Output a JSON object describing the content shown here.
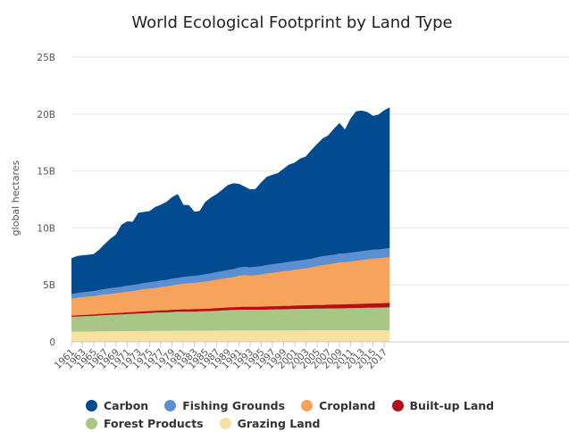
{
  "chart_data": {
    "type": "area",
    "stacked": true,
    "title": "World Ecological Footprint by Land Type",
    "ylabel": "global hectares",
    "ylim": [
      0,
      25
    ],
    "y_unit": "B",
    "yticks": [
      "0",
      "5B",
      "10B",
      "15B",
      "20B",
      "25B"
    ],
    "grid": true,
    "legend_position": "bottom",
    "x_start": 1961,
    "xtick_labels": [
      "1961",
      "1963",
      "1965",
      "1967",
      "1969",
      "1971",
      "1973",
      "1975",
      "1977",
      "1979",
      "1981",
      "1983",
      "1985",
      "1987",
      "1989",
      "1991",
      "1993",
      "1995",
      "1997",
      "1999",
      "2001",
      "2003",
      "2005",
      "2007",
      "2009",
      "2011",
      "2013",
      "2015",
      "2017"
    ],
    "series": [
      {
        "name": "Grazing Land",
        "color": "#f7e1a0",
        "values": [
          0.9,
          0.9,
          0.9,
          0.9,
          0.9,
          0.92,
          0.92,
          0.93,
          0.93,
          0.93,
          0.94,
          0.94,
          0.95,
          0.95,
          0.95,
          0.96,
          0.96,
          0.96,
          0.97,
          0.97,
          0.97,
          0.97,
          0.98,
          0.98,
          0.98,
          0.98,
          0.99,
          0.99,
          1.0,
          1.0,
          1.0,
          1.0,
          1.0,
          1.0,
          1.0,
          1.0,
          1.0,
          1.0,
          1.01,
          1.01,
          1.01,
          1.01,
          1.02,
          1.02,
          1.02,
          1.02,
          1.02,
          1.02,
          1.02,
          1.02,
          1.02,
          1.02,
          1.02,
          1.02,
          1.02,
          1.02,
          1.02,
          1.02
        ]
      },
      {
        "name": "Forest Products",
        "color": "#a8c686",
        "values": [
          1.3,
          1.32,
          1.34,
          1.36,
          1.38,
          1.4,
          1.42,
          1.44,
          1.46,
          1.48,
          1.5,
          1.52,
          1.54,
          1.56,
          1.58,
          1.6,
          1.62,
          1.63,
          1.65,
          1.67,
          1.68,
          1.68,
          1.68,
          1.69,
          1.7,
          1.72,
          1.74,
          1.76,
          1.78,
          1.8,
          1.81,
          1.82,
          1.82,
          1.82,
          1.82,
          1.83,
          1.84,
          1.85,
          1.85,
          1.86,
          1.87,
          1.88,
          1.88,
          1.89,
          1.9,
          1.9,
          1.91,
          1.92,
          1.92,
          1.93,
          1.94,
          1.95,
          1.96,
          1.97,
          1.98,
          1.99,
          2.0,
          2.02
        ]
      },
      {
        "name": "Built-up Land",
        "color": "#b50e14",
        "values": [
          0.1,
          0.1,
          0.11,
          0.11,
          0.12,
          0.12,
          0.13,
          0.13,
          0.14,
          0.14,
          0.15,
          0.15,
          0.16,
          0.16,
          0.17,
          0.17,
          0.18,
          0.18,
          0.19,
          0.19,
          0.2,
          0.2,
          0.21,
          0.21,
          0.22,
          0.22,
          0.23,
          0.23,
          0.24,
          0.24,
          0.25,
          0.25,
          0.26,
          0.26,
          0.27,
          0.27,
          0.28,
          0.28,
          0.29,
          0.29,
          0.3,
          0.3,
          0.31,
          0.31,
          0.32,
          0.32,
          0.33,
          0.33,
          0.34,
          0.34,
          0.35,
          0.35,
          0.36,
          0.36,
          0.37,
          0.37,
          0.38,
          0.38
        ]
      },
      {
        "name": "Cropland",
        "color": "#f7a35c",
        "values": [
          1.5,
          1.55,
          1.58,
          1.6,
          1.62,
          1.65,
          1.7,
          1.72,
          1.75,
          1.78,
          1.82,
          1.85,
          1.9,
          1.95,
          1.98,
          2.0,
          2.05,
          2.1,
          2.15,
          2.2,
          2.25,
          2.3,
          2.3,
          2.35,
          2.4,
          2.45,
          2.5,
          2.55,
          2.6,
          2.65,
          2.75,
          2.8,
          2.75,
          2.78,
          2.82,
          2.9,
          2.95,
          3.0,
          3.05,
          3.1,
          3.15,
          3.2,
          3.25,
          3.3,
          3.4,
          3.5,
          3.55,
          3.6,
          3.7,
          3.7,
          3.75,
          3.8,
          3.85,
          3.9,
          3.95,
          3.95,
          4.0,
          4.05
        ]
      },
      {
        "name": "Fishing Grounds",
        "color": "#5b8fd0",
        "values": [
          0.4,
          0.42,
          0.43,
          0.44,
          0.45,
          0.47,
          0.48,
          0.5,
          0.5,
          0.52,
          0.53,
          0.54,
          0.54,
          0.55,
          0.56,
          0.57,
          0.58,
          0.58,
          0.6,
          0.6,
          0.6,
          0.62,
          0.62,
          0.63,
          0.65,
          0.66,
          0.67,
          0.68,
          0.7,
          0.7,
          0.72,
          0.72,
          0.72,
          0.73,
          0.74,
          0.75,
          0.75,
          0.76,
          0.76,
          0.77,
          0.77,
          0.77,
          0.78,
          0.78,
          0.78,
          0.78,
          0.78,
          0.78,
          0.78,
          0.78,
          0.78,
          0.78,
          0.78,
          0.78,
          0.78,
          0.78,
          0.78,
          0.78
        ]
      },
      {
        "name": "Carbon",
        "color": "#034b90",
        "values": [
          3.1,
          3.2,
          3.2,
          3.2,
          3.2,
          3.5,
          3.9,
          4.3,
          4.6,
          5.4,
          5.6,
          5.5,
          6.2,
          6.2,
          6.2,
          6.5,
          6.6,
          6.8,
          7.1,
          7.3,
          6.3,
          6.2,
          5.6,
          5.6,
          6.3,
          6.6,
          6.8,
          7.1,
          7.4,
          7.5,
          7.3,
          7.0,
          6.8,
          6.8,
          7.3,
          7.7,
          7.8,
          7.9,
          8.2,
          8.5,
          8.6,
          8.9,
          9.0,
          9.5,
          9.9,
          10.3,
          10.5,
          11.0,
          11.4,
          10.8,
          11.7,
          12.3,
          12.3,
          12.1,
          11.7,
          11.8,
          12.1,
          12.3
        ]
      }
    ]
  },
  "legend": {
    "row1": [
      {
        "label": "Carbon",
        "color": "#034b90"
      },
      {
        "label": "Fishing Grounds",
        "color": "#5b8fd0"
      },
      {
        "label": "Cropland",
        "color": "#f7a35c"
      },
      {
        "label": "Built-up Land",
        "color": "#b50e14"
      }
    ],
    "row2": [
      {
        "label": "Forest Products",
        "color": "#a8c686"
      },
      {
        "label": "Grazing Land",
        "color": "#f7e1a0"
      }
    ]
  }
}
